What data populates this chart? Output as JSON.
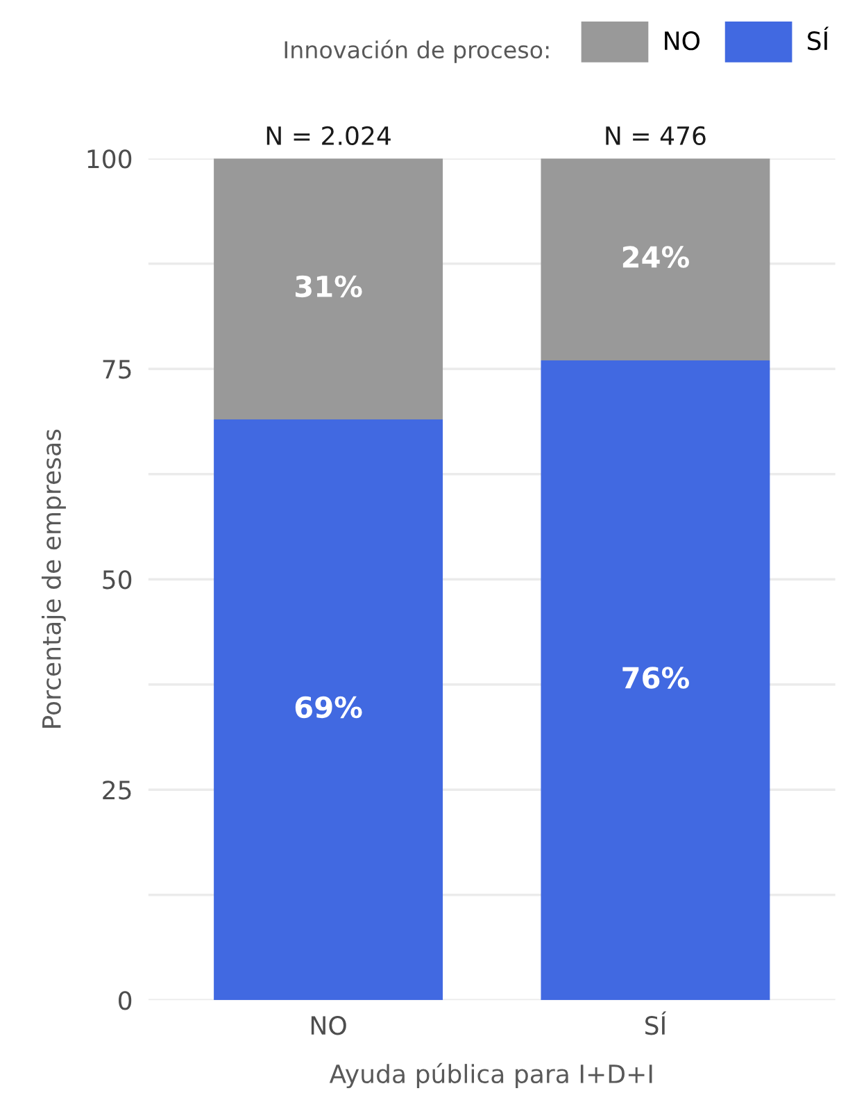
{
  "chart_data": {
    "type": "bar",
    "stacked": true,
    "xlabel": "Ayuda pública para I+D+I",
    "ylabel": "Porcentaje de empresas",
    "legend_title": "Innovación de proceso:",
    "legend": "top",
    "grid": "y",
    "categories": [
      "NO",
      "SÍ"
    ],
    "series": [
      {
        "name": "SÍ",
        "color": "#4169e1",
        "values": [
          69,
          76
        ],
        "value_labels": [
          "69%",
          "76%"
        ]
      },
      {
        "name": "NO",
        "color": "#999999",
        "values": [
          31,
          24
        ],
        "value_labels": [
          "31%",
          "24%"
        ]
      }
    ],
    "annotations": [
      {
        "text": "N = 2.024",
        "x": "NO",
        "y": 100
      },
      {
        "text": "N = 476",
        "x": "SÍ",
        "y": 100
      }
    ],
    "ylim": [
      0,
      100
    ],
    "yticks": [
      0,
      {
        "value": 12.5,
        "label": null
      },
      25,
      {
        "value": 37.5,
        "label": null
      },
      50,
      {
        "value": 62.5,
        "label": null
      },
      75,
      {
        "value": 87.5,
        "label": null
      },
      100
    ]
  }
}
